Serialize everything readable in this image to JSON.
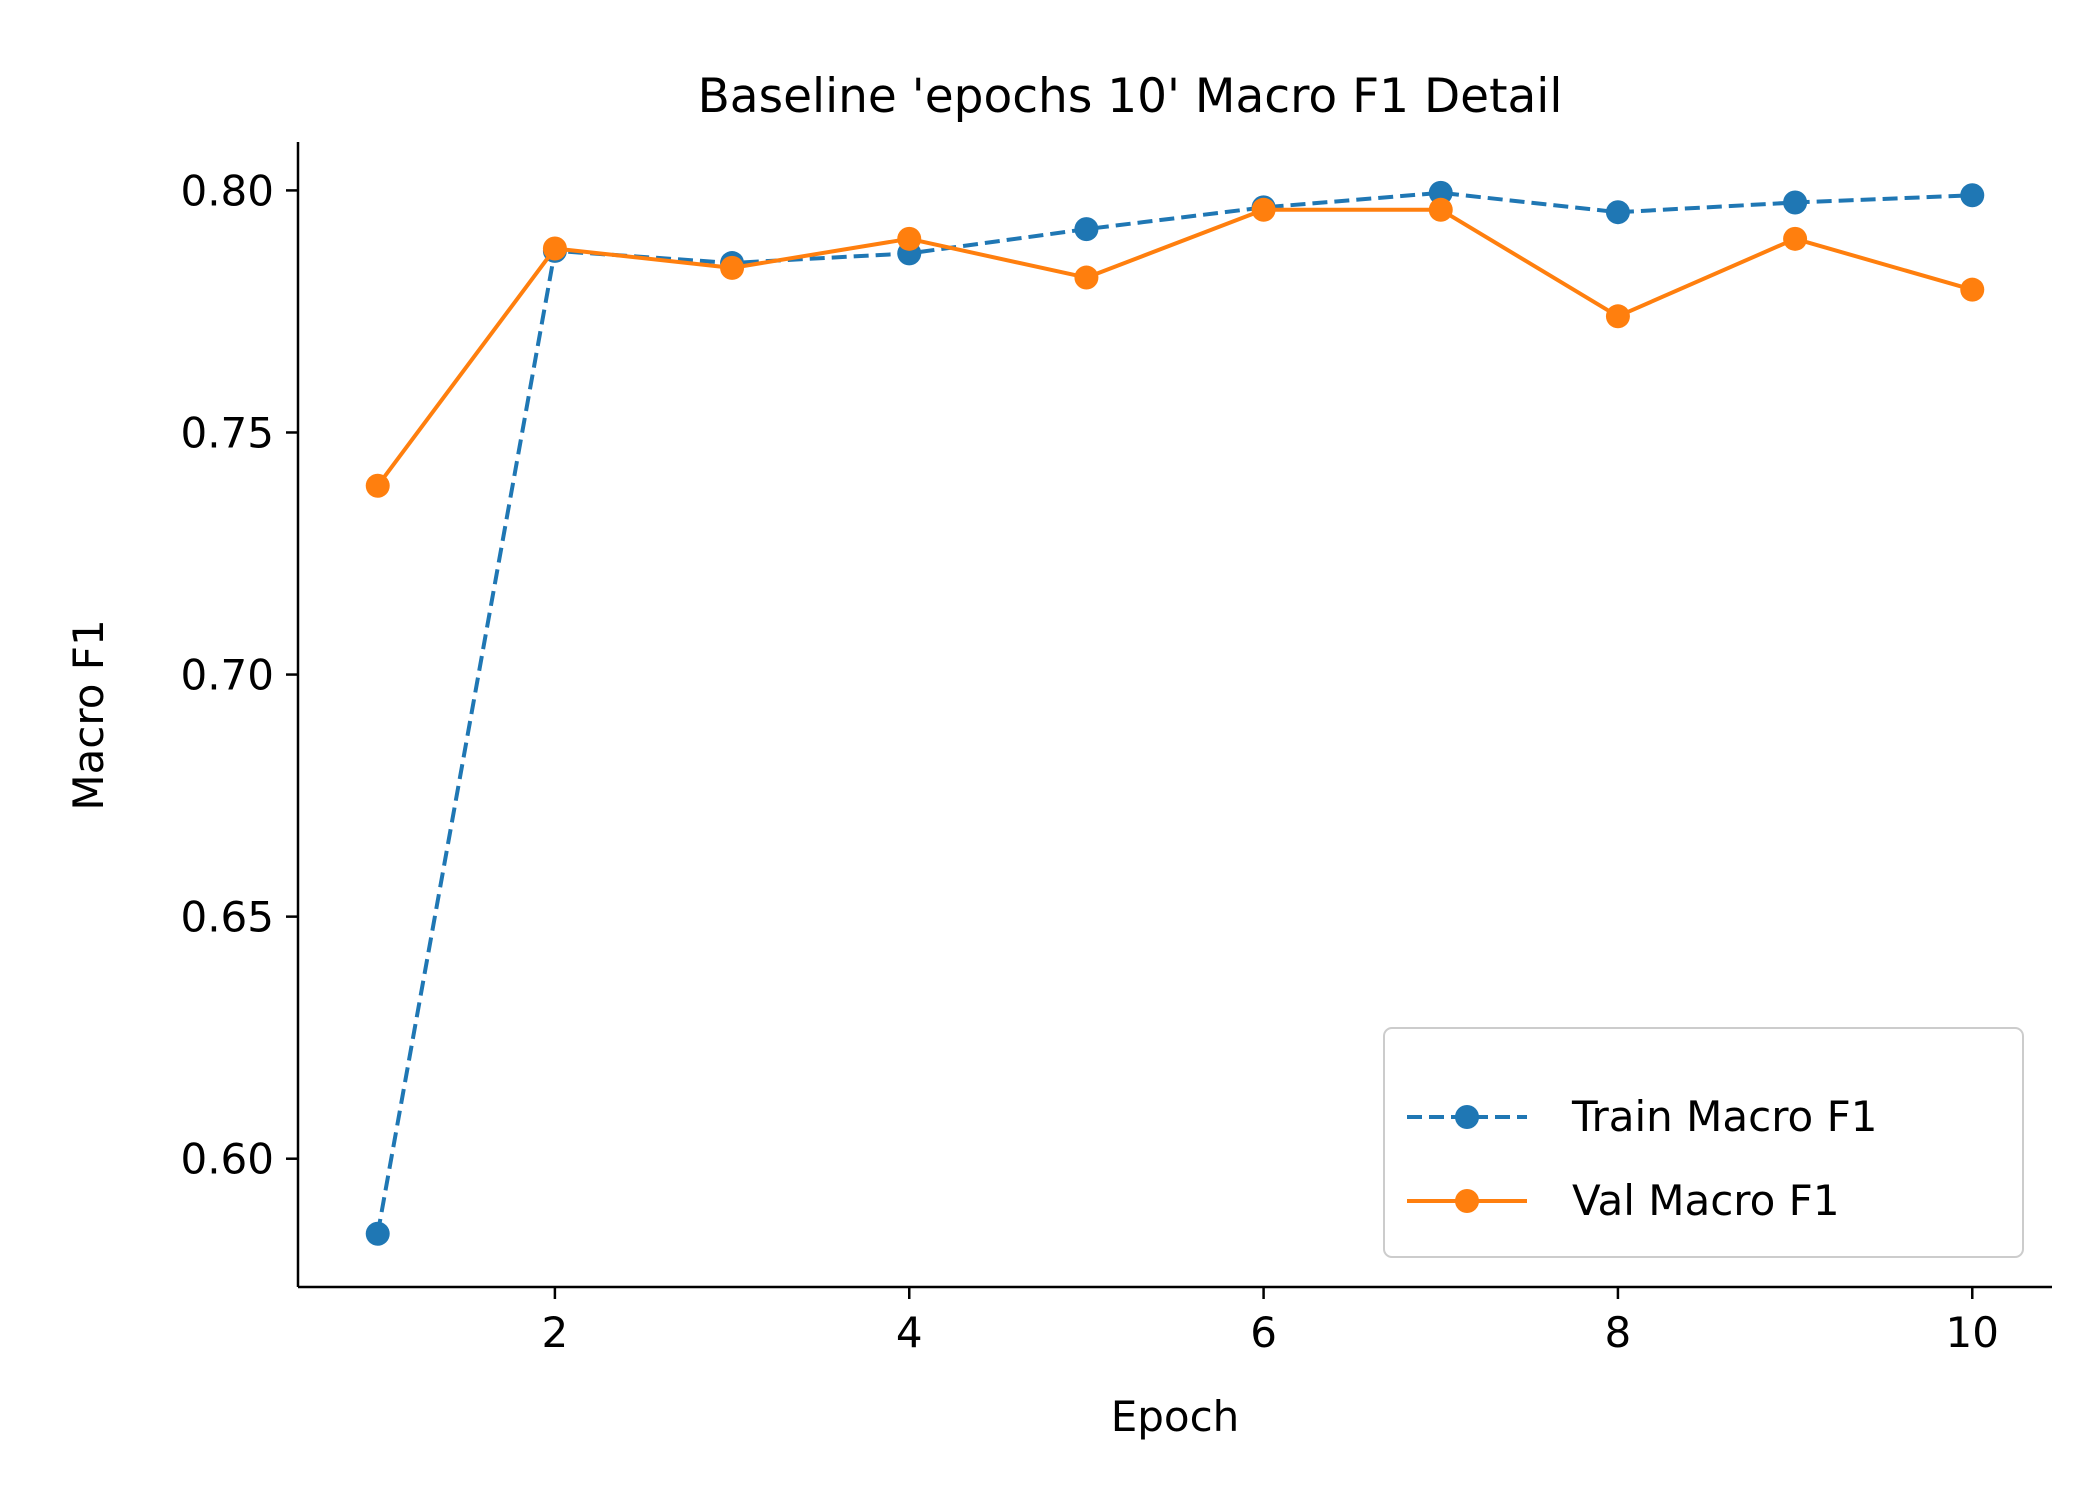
{
  "chart_data": {
    "type": "line",
    "title": "Baseline 'epochs 10' Macro F1 Detail",
    "xlabel": "Epoch",
    "ylabel": "Macro F1",
    "x": [
      1,
      2,
      3,
      4,
      5,
      6,
      7,
      8,
      9,
      10
    ],
    "xlim": [
      0.55,
      10.45
    ],
    "ylim": [
      0.5735,
      0.81
    ],
    "xticks": [
      2,
      4,
      6,
      8,
      10
    ],
    "xtick_labels": [
      "2",
      "4",
      "6",
      "8",
      "10"
    ],
    "yticks": [
      0.6,
      0.65,
      0.7,
      0.75,
      0.8
    ],
    "ytick_labels": [
      "0.60",
      "0.65",
      "0.70",
      "0.75",
      "0.80"
    ],
    "grid": false,
    "legend_position": "lower-right",
    "series": [
      {
        "name": "Train Macro F1",
        "color": "#1f77b4",
        "line_style": "dashed",
        "marker": "circle",
        "values": [
          0.5845,
          0.7875,
          0.785,
          0.787,
          0.792,
          0.7965,
          0.7995,
          0.7955,
          0.7975,
          0.799
        ]
      },
      {
        "name": "Val Macro F1",
        "color": "#ff7f0e",
        "line_style": "solid",
        "marker": "circle",
        "values": [
          0.739,
          0.788,
          0.784,
          0.79,
          0.782,
          0.796,
          0.796,
          0.774,
          0.79,
          0.7795
        ]
      }
    ]
  }
}
